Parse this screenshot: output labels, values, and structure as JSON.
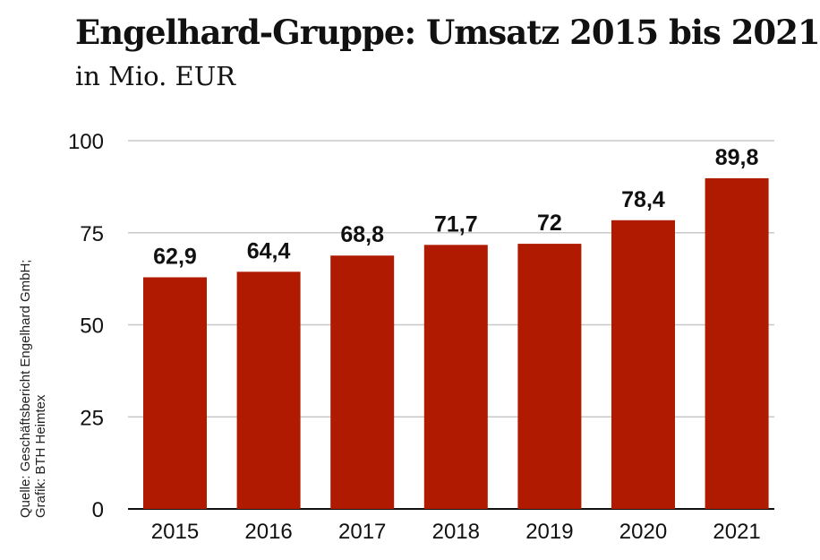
{
  "chart_data": {
    "type": "bar",
    "title": "Engelhard-Gruppe: Umsatz 2015 bis 2021",
    "subtitle": "in Mio. EUR",
    "categories": [
      "2015",
      "2016",
      "2017",
      "2018",
      "2019",
      "2020",
      "2021"
    ],
    "values": [
      62.9,
      64.4,
      68.8,
      71.7,
      72,
      78.4,
      89.8
    ],
    "data_labels": [
      "62,9",
      "64,4",
      "68,8",
      "71,7",
      "72",
      "78,4",
      "89,8"
    ],
    "yticks": [
      "0",
      "25",
      "50",
      "75",
      "100"
    ],
    "ylim": [
      0,
      100
    ],
    "grid": true,
    "bar_color": "#b01a00",
    "source": [
      "Quelle: Geschäftsbericht Engelhard GmbH;",
      "Grafik: BTH Heimtex"
    ]
  }
}
